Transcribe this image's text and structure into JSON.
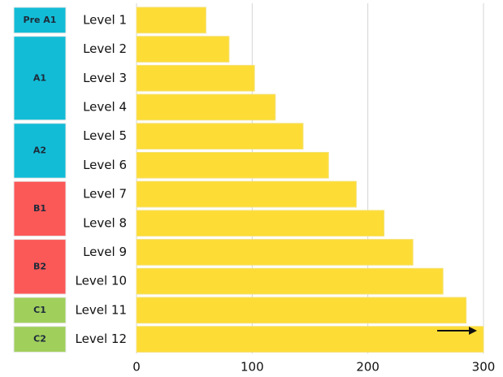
{
  "chart_data": {
    "type": "bar",
    "orientation": "horizontal",
    "categories": [
      "Level 1",
      "Level 2",
      "Level 3",
      "Level 4",
      "Level 5",
      "Level 6",
      "Level 7",
      "Level 8",
      "Level 9",
      "Level 10",
      "Level 11",
      "Level 12"
    ],
    "values": [
      60,
      80,
      102,
      120,
      144,
      166,
      190,
      214,
      239,
      265,
      285,
      300
    ],
    "color": "#fddc35",
    "category_group": [
      "Pre A1",
      "A1",
      "A1",
      "A1",
      "A2",
      "A2",
      "B1",
      "B1",
      "B2",
      "B2",
      "C1",
      "C2"
    ],
    "groups": [
      {
        "name": "Pre A1",
        "color": "#12bcd6"
      },
      {
        "name": "A1",
        "color": "#12bcd6"
      },
      {
        "name": "A2",
        "color": "#12bcd6"
      },
      {
        "name": "B1",
        "color": "#fb5858"
      },
      {
        "name": "B2",
        "color": "#fb5858"
      },
      {
        "name": "C1",
        "color": "#a0cf5c"
      },
      {
        "name": "C2",
        "color": "#a0cf5c"
      }
    ],
    "xlim": [
      0,
      300
    ],
    "xticks": [
      0,
      100,
      200,
      300
    ],
    "grid": true
  }
}
